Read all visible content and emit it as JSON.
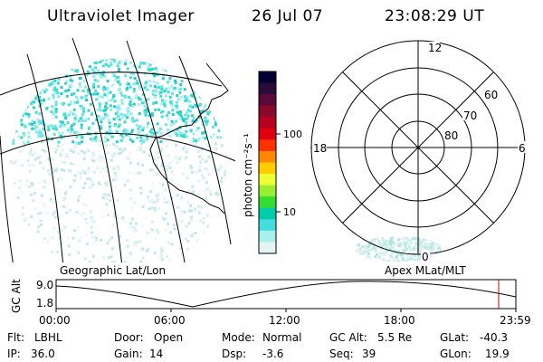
{
  "header": {
    "title": "Ultraviolet Imager",
    "date": "26 Jul 07",
    "time": "23:08:29 UT"
  },
  "colorbar": {
    "unit_label": "photon cm⁻²s⁻¹",
    "ticks": [
      "100",
      "10"
    ],
    "colors": [
      "#000033",
      "#2a0a3a",
      "#5a0a3a",
      "#8a0a2a",
      "#b80020",
      "#e00010",
      "#ff3300",
      "#ff8800",
      "#ffcc00",
      "#eeff33",
      "#99ee33",
      "#33dd33",
      "#00ccaa",
      "#44dddd",
      "#aaeeee",
      "#e4f4f4"
    ]
  },
  "polar": {
    "mlt_labels": {
      "top": "12",
      "left": "18",
      "right": "6",
      "bottom": "0"
    },
    "lat_labels": [
      "60",
      "70",
      "80"
    ]
  },
  "map_labels": {
    "left": "Geographic Lat/Lon",
    "right": "Apex MLat/MLT"
  },
  "gc_alt_plot": {
    "ylabel": "GC Alt",
    "ymax": "9.0",
    "ymin": "1.8",
    "xticks": [
      "00:00",
      "06:00",
      "12:00",
      "18:00",
      "23:59"
    ],
    "marker_color": "#cc0000"
  },
  "info": {
    "row1": [
      {
        "label": "Flt:",
        "value": "LBHL"
      },
      {
        "label": "Door:",
        "value": "Open"
      },
      {
        "label": "Mode:",
        "value": "Normal"
      },
      {
        "label": "GC Alt:",
        "value": "5.5 Re"
      },
      {
        "label": "GLat:",
        "value": "-40.3"
      }
    ],
    "row2": [
      {
        "label": "IP:",
        "value": "36.0"
      },
      {
        "label": "Gain:",
        "value": "14"
      },
      {
        "label": "Dsp:",
        "value": "-3.6"
      },
      {
        "label": "Seq:",
        "value": "39"
      },
      {
        "label": "GLon:",
        "value": "19.9"
      }
    ]
  }
}
